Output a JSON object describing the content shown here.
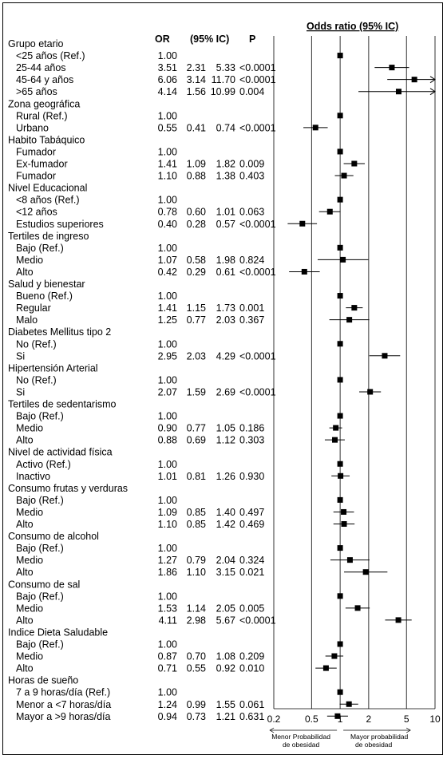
{
  "chart_data": {
    "type": "forest",
    "title": "Odds ratio (95% IC)",
    "columns": [
      "OR",
      "(95% IC)",
      "P"
    ],
    "x_scale": "log",
    "xlim": [
      0.2,
      10
    ],
    "xticks": [
      "0.2",
      "0.5",
      "1",
      "2",
      "5",
      "10"
    ],
    "reference_line": 1,
    "footnote_left": [
      "Menor Probabilidad",
      "de obesidad"
    ],
    "footnote_right": [
      "Mayor probabilidad",
      "de obesidad"
    ],
    "groups": [
      {
        "name": "Grupo etario",
        "rows": [
          {
            "label": "<25 años (Ref.)",
            "or": 1.0,
            "lo": null,
            "hi": null,
            "p": ""
          },
          {
            "label": "25-44 años",
            "or": 3.51,
            "lo": 2.31,
            "hi": 5.33,
            "p": "<0.0001"
          },
          {
            "label": "45-64 y años",
            "or": 6.06,
            "lo": 3.14,
            "hi": 11.7,
            "p": "<0.0001"
          },
          {
            "label": ">65 años",
            "or": 4.14,
            "lo": 1.56,
            "hi": 10.99,
            "p": "0.004"
          }
        ]
      },
      {
        "name": "Zona geográfica",
        "rows": [
          {
            "label": "Rural (Ref.)",
            "or": 1.0,
            "lo": null,
            "hi": null,
            "p": ""
          },
          {
            "label": "Urbano",
            "or": 0.55,
            "lo": 0.41,
            "hi": 0.74,
            "p": "<0.0001"
          }
        ]
      },
      {
        "name": "Habito Tabáquico",
        "rows": [
          {
            "label": "Fumador",
            "or": 1.0,
            "lo": null,
            "hi": null,
            "p": ""
          },
          {
            "label": "Ex-fumador",
            "or": 1.41,
            "lo": 1.09,
            "hi": 1.82,
            "p": "0.009"
          },
          {
            "label": "Fumador",
            "or": 1.1,
            "lo": 0.88,
            "hi": 1.38,
            "p": "0.403"
          }
        ]
      },
      {
        "name": "Nivel Educacional",
        "rows": [
          {
            "label": "<8 años  (Ref.)",
            "or": 1.0,
            "lo": null,
            "hi": null,
            "p": ""
          },
          {
            "label": "<12 años",
            "or": 0.78,
            "lo": 0.6,
            "hi": 1.01,
            "p": "0.063"
          },
          {
            "label": " Estudios superiores",
            "or": 0.4,
            "lo": 0.28,
            "hi": 0.57,
            "p": "<0.0001"
          }
        ]
      },
      {
        "name": "Tertiles de ingreso",
        "rows": [
          {
            "label": "Bajo (Ref.)",
            "or": 1.0,
            "lo": null,
            "hi": null,
            "p": ""
          },
          {
            "label": "Medio",
            "or": 1.07,
            "lo": 0.58,
            "hi": 1.98,
            "p": "0.824"
          },
          {
            "label": "Alto",
            "or": 0.42,
            "lo": 0.29,
            "hi": 0.61,
            "p": "<0.0001"
          }
        ]
      },
      {
        "name": "Salud y bienestar",
        "rows": [
          {
            "label": "Bueno  (Ref.)",
            "or": 1.0,
            "lo": null,
            "hi": null,
            "p": ""
          },
          {
            "label": "Regular",
            "or": 1.41,
            "lo": 1.15,
            "hi": 1.73,
            "p": "0.001"
          },
          {
            "label": "Malo",
            "or": 1.25,
            "lo": 0.77,
            "hi": 2.03,
            "p": "0.367"
          }
        ]
      },
      {
        "name": "Diabetes Mellitus tipo 2",
        "rows": [
          {
            "label": "No (Ref.)",
            "or": 1.0,
            "lo": null,
            "hi": null,
            "p": ""
          },
          {
            "label": "Si",
            "or": 2.95,
            "lo": 2.03,
            "hi": 4.29,
            "p": "<0.0001"
          }
        ]
      },
      {
        "name": "Hipertensión Arterial",
        "rows": [
          {
            "label": "No (Ref.)",
            "or": 1.0,
            "lo": null,
            "hi": null,
            "p": ""
          },
          {
            "label": "Si",
            "or": 2.07,
            "lo": 1.59,
            "hi": 2.69,
            "p": "<0.0001"
          }
        ]
      },
      {
        "name": "Tertiles de sedentarismo",
        "rows": [
          {
            "label": "Bajo (Ref.)",
            "or": 1.0,
            "lo": null,
            "hi": null,
            "p": ""
          },
          {
            "label": "Medio",
            "or": 0.9,
            "lo": 0.77,
            "hi": 1.05,
            "p": "0.186"
          },
          {
            "label": "Alto",
            "or": 0.88,
            "lo": 0.69,
            "hi": 1.12,
            "p": "0.303"
          }
        ]
      },
      {
        "name": "Nivel de actividad física",
        "rows": [
          {
            "label": "Activo (Ref.)",
            "or": 1.0,
            "lo": null,
            "hi": null,
            "p": ""
          },
          {
            "label": "Inactivo",
            "or": 1.01,
            "lo": 0.81,
            "hi": 1.26,
            "p": "0.930"
          }
        ]
      },
      {
        "name": "Consumo frutas y verduras",
        "rows": [
          {
            "label": "Bajo (Ref.)",
            "or": 1.0,
            "lo": null,
            "hi": null,
            "p": ""
          },
          {
            "label": "Medio",
            "or": 1.09,
            "lo": 0.85,
            "hi": 1.4,
            "p": "0.497"
          },
          {
            "label": "Alto",
            "or": 1.1,
            "lo": 0.85,
            "hi": 1.42,
            "p": "0.469"
          }
        ]
      },
      {
        "name": "Consumo de alcohol",
        "rows": [
          {
            "label": "Bajo (Ref.)",
            "or": 1.0,
            "lo": null,
            "hi": null,
            "p": ""
          },
          {
            "label": "Medio",
            "or": 1.27,
            "lo": 0.79,
            "hi": 2.04,
            "p": "0.324"
          },
          {
            "label": "Alto",
            "or": 1.86,
            "lo": 1.1,
            "hi": 3.15,
            "p": "0.021"
          }
        ]
      },
      {
        "name": "Consumo de sal",
        "rows": [
          {
            "label": "Bajo (Ref.)",
            "or": 1.0,
            "lo": null,
            "hi": null,
            "p": ""
          },
          {
            "label": "Medio",
            "or": 1.53,
            "lo": 1.14,
            "hi": 2.05,
            "p": "0.005"
          },
          {
            "label": "Alto",
            "or": 4.11,
            "lo": 2.98,
            "hi": 5.67,
            "p": "<0.0001"
          }
        ]
      },
      {
        "name": "Indice Dieta Saludable",
        "rows": [
          {
            "label": "Bajo (Ref.)",
            "or": 1.0,
            "lo": null,
            "hi": null,
            "p": ""
          },
          {
            "label": "Medio",
            "or": 0.87,
            "lo": 0.7,
            "hi": 1.08,
            "p": "0.209"
          },
          {
            "label": "Alto",
            "or": 0.71,
            "lo": 0.55,
            "hi": 0.92,
            "p": "0.010"
          }
        ]
      },
      {
        "name": "Horas de sueño",
        "rows": [
          {
            "label": "7 a 9 horas/día (Ref.)",
            "or": 1.0,
            "lo": null,
            "hi": null,
            "p": ""
          },
          {
            "label": "Menor a <7 horas/día",
            "or": 1.24,
            "lo": 0.99,
            "hi": 1.55,
            "p": "0.061"
          },
          {
            "label": "Mayor a >9 horas/día",
            "or": 0.94,
            "lo": 0.73,
            "hi": 1.21,
            "p": "0.631"
          }
        ]
      }
    ]
  }
}
